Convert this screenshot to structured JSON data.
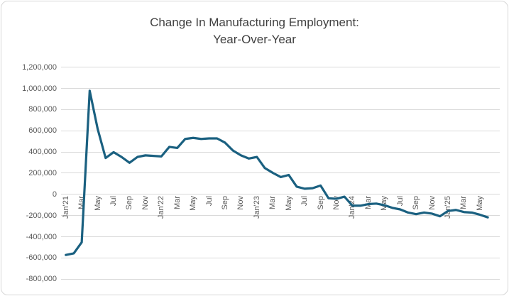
{
  "chart": {
    "title_line1": "Change In Manufacturing Employment:",
    "title_line2": "Year-Over-Year"
  },
  "chart_data": {
    "type": "line",
    "title": "Change In Manufacturing Employment: Year-Over-Year",
    "legend": "none",
    "grid": "horizontal",
    "ylim": [
      -800000,
      1200000
    ],
    "y_ticks": [
      1200000,
      1000000,
      800000,
      600000,
      400000,
      200000,
      0,
      -200000,
      -400000,
      -600000,
      -800000
    ],
    "y_tick_labels": [
      "1,200,000",
      "1,000,000",
      "800,000",
      "600,000",
      "400,000",
      "200,000",
      "0",
      "-200,000",
      "-400,000",
      "-600,000",
      "-800,000"
    ],
    "x_tick_every": 2,
    "x_tick_labels": [
      "Jan'21",
      "Mar",
      "May",
      "Jul",
      "Sep",
      "Nov",
      "Jan'22",
      "Mar",
      "May",
      "Jul",
      "Sep",
      "Nov",
      "Jan'23",
      "Mar",
      "May",
      "Jul",
      "Sep",
      "Nov",
      "Jan'24",
      "Mar",
      "May",
      "Jul",
      "Sep",
      "Nov",
      "Jan'25",
      "Mar",
      "May"
    ],
    "x": [
      "Jan'21",
      "Feb'21",
      "Mar'21",
      "Apr'21",
      "May'21",
      "Jun'21",
      "Jul'21",
      "Aug'21",
      "Sep'21",
      "Oct'21",
      "Nov'21",
      "Dec'21",
      "Jan'22",
      "Feb'22",
      "Mar'22",
      "Apr'22",
      "May'22",
      "Jun'22",
      "Jul'22",
      "Aug'22",
      "Sep'22",
      "Oct'22",
      "Nov'22",
      "Dec'22",
      "Jan'23",
      "Feb'23",
      "Mar'23",
      "Apr'23",
      "May'23",
      "Jun'23",
      "Jul'23",
      "Aug'23",
      "Sep'23",
      "Oct'23",
      "Nov'23",
      "Dec'23",
      "Jan'24",
      "Feb'24",
      "Mar'24",
      "Apr'24",
      "May'24",
      "Jun'24",
      "Jul'24",
      "Aug'24",
      "Sep'24",
      "Oct'24",
      "Nov'24",
      "Dec'24",
      "Jan'25",
      "Feb'25",
      "Mar'25",
      "Apr'25",
      "May'25",
      "Jun'25"
    ],
    "values": [
      -570000,
      -555000,
      -450000,
      980000,
      620000,
      345000,
      400000,
      355000,
      300000,
      355000,
      370000,
      365000,
      360000,
      450000,
      440000,
      525000,
      535000,
      525000,
      530000,
      530000,
      490000,
      415000,
      370000,
      340000,
      355000,
      250000,
      205000,
      165000,
      185000,
      75000,
      55000,
      60000,
      85000,
      -35000,
      -40000,
      -20000,
      -105000,
      -105000,
      -90000,
      -85000,
      -100000,
      -125000,
      -140000,
      -170000,
      -185000,
      -170000,
      -180000,
      -205000,
      -155000,
      -145000,
      -165000,
      -170000,
      -190000,
      -215000
    ],
    "line_color": "#1a6080",
    "gridline_color": "#d9d9d9",
    "label_color": "#595959",
    "title_color": "#404040"
  }
}
